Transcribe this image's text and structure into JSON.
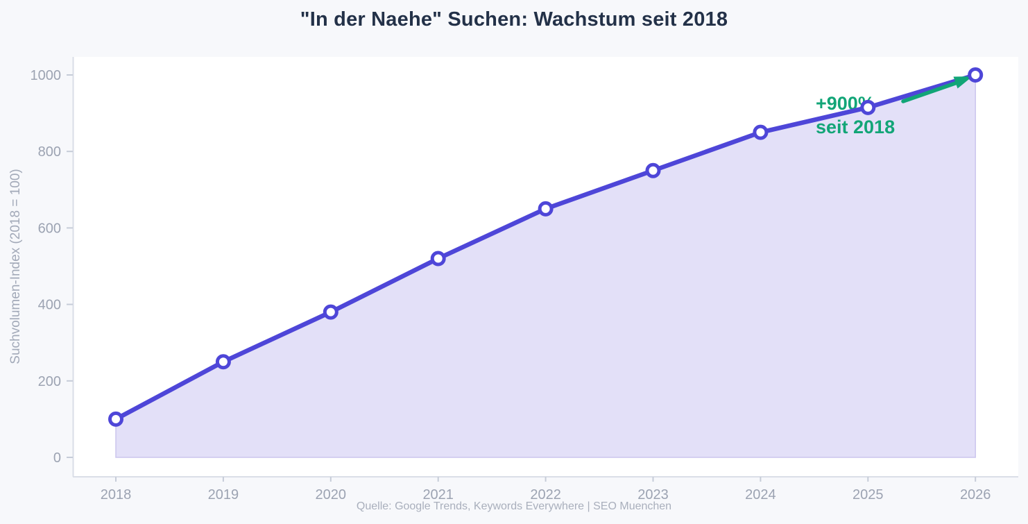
{
  "title": "\"In der Naehe\" Suchen: Wachstum seit 2018",
  "source_line": "Quelle: Google Trends, Keywords Everywhere | SEO Muenchen",
  "annotation": {
    "line1": "+900%",
    "line2": "seit 2018"
  },
  "colors": {
    "line": "#4e46d8",
    "area_fill": "#e3e0f8",
    "area_border": "#cbc5ee",
    "accent_green": "#12a577",
    "title_text": "#233148",
    "axis_text": "#9ca3b2",
    "axis_line": "#dadee7",
    "tick_mark": "#c6ccd8",
    "plot_bg": "#ffffff",
    "page_bg": "#f7f8fb"
  },
  "chart_data": {
    "type": "area",
    "x": [
      2018,
      2019,
      2020,
      2021,
      2022,
      2023,
      2024,
      2025,
      2026
    ],
    "series": [
      {
        "name": "Suchvolumen-Index",
        "values": [
          100,
          250,
          380,
          520,
          650,
          750,
          850,
          915,
          1000
        ]
      }
    ],
    "title": "\"In der Naehe\" Suchen: Wachstum seit 2018",
    "xlabel": "",
    "ylabel": "Suchvolumen-Index (2018 = 100)",
    "ylim": [
      0,
      1000
    ],
    "yticks": [
      0,
      200,
      400,
      600,
      800,
      1000
    ],
    "grid": false,
    "legend": false,
    "marker": "open-circle",
    "annotation": {
      "text": "+900% seit 2018",
      "points_to": {
        "x": 2026,
        "y": 1000
      }
    }
  }
}
